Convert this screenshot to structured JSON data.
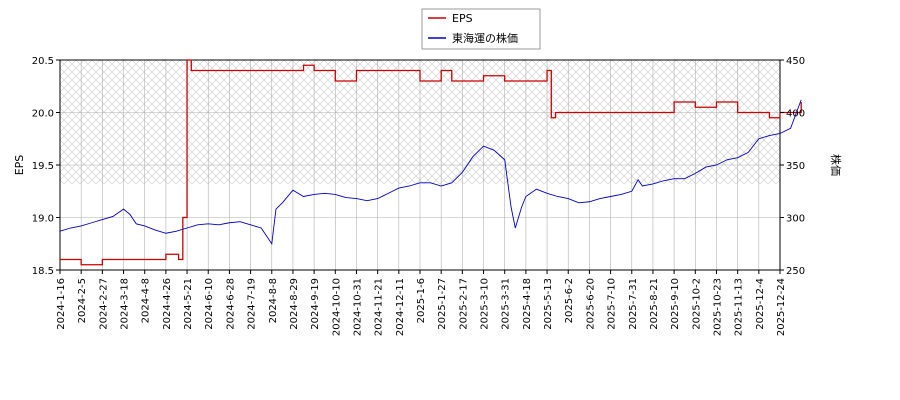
{
  "chart_data": {
    "type": "line",
    "title": "",
    "ylabel_left": "EPS",
    "ylabel_right": "株価",
    "ylim_left": [
      18.5,
      20.5
    ],
    "ylim_right": [
      250,
      450
    ],
    "yticks_left": [
      "18.5",
      "19.0",
      "19.5",
      "20.0",
      "20.5"
    ],
    "yticks_right": [
      "250",
      "300",
      "350",
      "400",
      "450"
    ],
    "grid": true,
    "legend_position": "top-center",
    "xticks": [
      "2024-1-16",
      "2024-2-5",
      "2024-2-27",
      "2024-3-18",
      "2024-4-8",
      "2024-4-26",
      "2024-5-21",
      "2024-6-10",
      "2024-6-28",
      "2024-7-19",
      "2024-8-8",
      "2024-8-29",
      "2024-9-19",
      "2024-10-10",
      "2024-10-31",
      "2024-11-21",
      "2024-12-11",
      "2025-1-6",
      "2025-1-27",
      "2025-2-17",
      "2025-3-10",
      "2025-3-31",
      "2025-4-18",
      "2025-5-13",
      "2025-6-2",
      "2025-6-20",
      "2025-7-10",
      "2025-7-31",
      "2025-8-21",
      "2025-9-10",
      "2025-10-2",
      "2025-10-23",
      "2025-11-13",
      "2025-12-4",
      "2025-12-24"
    ],
    "series": [
      {
        "name": "EPS",
        "color": "#cc0000",
        "axis": "left",
        "x": [
          0,
          1,
          2,
          3,
          4,
          5,
          5.6,
          5.8,
          6.0,
          6.2,
          7,
          8,
          9,
          10,
          11,
          11.5,
          12,
          13,
          14,
          15,
          16,
          17,
          18,
          18.5,
          19,
          20,
          21,
          22,
          23,
          23.2,
          23.4,
          24,
          25,
          26,
          27,
          28,
          29,
          30,
          31,
          32,
          33,
          33.5,
          34,
          34.5,
          35
        ],
        "values": [
          18.6,
          18.55,
          18.6,
          18.6,
          18.6,
          18.65,
          18.6,
          19.0,
          20.5,
          20.4,
          20.4,
          20.4,
          20.4,
          20.4,
          20.4,
          20.45,
          20.4,
          20.3,
          20.4,
          20.4,
          20.4,
          20.3,
          20.4,
          20.3,
          20.3,
          20.35,
          20.3,
          20.3,
          20.4,
          19.95,
          20.0,
          20.0,
          20.0,
          20.0,
          20.0,
          20.0,
          20.1,
          20.05,
          20.1,
          20.0,
          20.0,
          19.95,
          20.0,
          20.0,
          20.1
        ]
      },
      {
        "name": "東海運の株価",
        "color": "#0000cc",
        "axis": "right",
        "x": [
          0,
          0.5,
          1,
          1.5,
          2,
          2.5,
          3,
          3.3,
          3.6,
          4,
          4.5,
          5,
          5.5,
          6,
          6.5,
          7,
          7.5,
          8,
          8.5,
          9,
          9.5,
          10,
          10.2,
          10.5,
          11,
          11.5,
          12,
          12.5,
          13,
          13.5,
          14,
          14.5,
          15,
          15.5,
          16,
          16.5,
          17,
          17.5,
          18,
          18.5,
          19,
          19.5,
          20,
          20.5,
          21,
          21.3,
          21.5,
          21.8,
          22,
          22.5,
          23,
          23.5,
          24,
          24.5,
          25,
          25.5,
          26,
          26.5,
          27,
          27.3,
          27.5,
          28,
          28.5,
          29,
          29.5,
          30,
          30.5,
          31,
          31.5,
          32,
          32.5,
          33,
          33.5,
          34,
          34.5,
          35
        ],
        "values": [
          287,
          290,
          292,
          295,
          298,
          301,
          308,
          303,
          294,
          292,
          288,
          285,
          287,
          290,
          293,
          294,
          293,
          295,
          296,
          293,
          290,
          275,
          308,
          314,
          326,
          320,
          322,
          323,
          322,
          319,
          318,
          316,
          318,
          323,
          328,
          330,
          333,
          333,
          330,
          333,
          343,
          358,
          368,
          364,
          355,
          310,
          290,
          310,
          320,
          327,
          323,
          320,
          318,
          314,
          315,
          318,
          320,
          322,
          325,
          336,
          330,
          332,
          335,
          337,
          337,
          342,
          348,
          350,
          355,
          357,
          362,
          375,
          378,
          380,
          385,
          412
        ]
      }
    ]
  },
  "legend": {
    "items": [
      {
        "label": "EPS",
        "color": "#cc0000"
      },
      {
        "label": "東海運の株価",
        "color": "#0000cc"
      }
    ]
  }
}
